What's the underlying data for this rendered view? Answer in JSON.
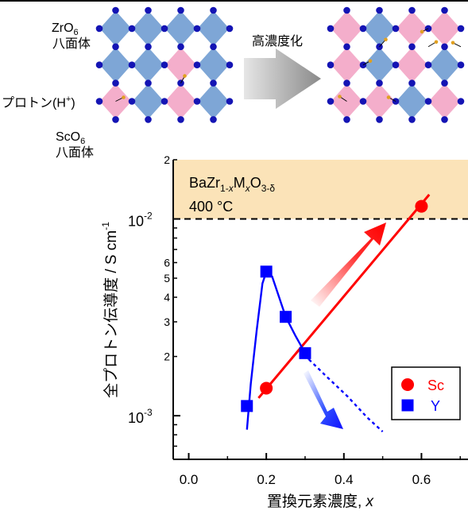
{
  "diagram": {
    "zro6_label_main": "ZrO",
    "zro6_label_sub": "6",
    "zro6_label_jp": "八面体",
    "proton_label_main": "プロトン(H",
    "proton_label_sup": "+",
    "proton_label_end": ")",
    "sco6_label_main": "ScO",
    "sco6_label_sub": "6",
    "sco6_label_jp": "八面体",
    "arrow_label": "高濃度化",
    "colors": {
      "zr_octahedron": "#7ea6d6",
      "sc_octahedron": "#f4aecb",
      "oxygen": "#1414b4",
      "proton": "#e0a020"
    }
  },
  "chart_data": {
    "type": "scatter",
    "ylabel": "全プロトン伝導度 / S cm",
    "ylabel_sup": "-1",
    "xlabel": "置換元素濃度, ",
    "xlabel_var": "x",
    "x_ticks": [
      "0.0",
      "0.2",
      "0.4",
      "0.6"
    ],
    "y_major_ticks": [
      {
        "main": "10",
        "exp": "-3",
        "value": 0.001
      },
      {
        "main": "10",
        "exp": "-2",
        "value": 0.01
      }
    ],
    "y_minor_labels": [
      {
        "label": "2",
        "value": 0.002
      },
      {
        "label": "3",
        "value": 0.003
      },
      {
        "label": "4",
        "value": 0.004
      },
      {
        "label": "5",
        "value": 0.005
      },
      {
        "label": "6",
        "value": 0.006
      },
      {
        "label": "2",
        "value": 0.02
      }
    ],
    "xlim": [
      -0.04,
      0.72
    ],
    "ylim": [
      0.0006,
      0.02
    ],
    "y_scale": "log",
    "highlight": {
      "ymin": 0.01,
      "ymax": 0.02,
      "color": "#fbe3b8"
    },
    "reference_line_y": 0.01,
    "formula": {
      "p1": "BaZr",
      "s1": "1-",
      "s2": "x",
      "p2": "M",
      "s3": "x",
      "p3": "O",
      "s4": "3-δ"
    },
    "temperature": "400 °C",
    "series": [
      {
        "name": "Sc",
        "color": "#ff0000",
        "marker": "circle",
        "x": [
          0.2,
          0.6
        ],
        "y": [
          0.00138,
          0.0116
        ],
        "fit": [
          [
            0.18,
            0.00123
          ],
          [
            0.62,
            0.0133
          ]
        ]
      },
      {
        "name": "Y",
        "color": "#0000ff",
        "marker": "square",
        "x": [
          0.15,
          0.2,
          0.25,
          0.3
        ],
        "y": [
          0.00112,
          0.0054,
          0.00318,
          0.00208
        ],
        "curve": [
          [
            0.15,
            0.00085
          ],
          [
            0.16,
            0.00145
          ],
          [
            0.175,
            0.0027
          ],
          [
            0.19,
            0.0047
          ],
          [
            0.2,
            0.0054
          ],
          [
            0.215,
            0.0051
          ],
          [
            0.235,
            0.0039
          ],
          [
            0.25,
            0.00318
          ],
          [
            0.275,
            0.00255
          ],
          [
            0.3,
            0.00208
          ],
          [
            0.31,
            0.00193
          ]
        ],
        "extrapolation": [
          [
            0.31,
            0.00193
          ],
          [
            0.36,
            0.00155
          ],
          [
            0.41,
            0.00125
          ],
          [
            0.46,
            0.00098
          ],
          [
            0.5,
            0.00083
          ]
        ]
      }
    ],
    "legend_position": "lower-right"
  }
}
